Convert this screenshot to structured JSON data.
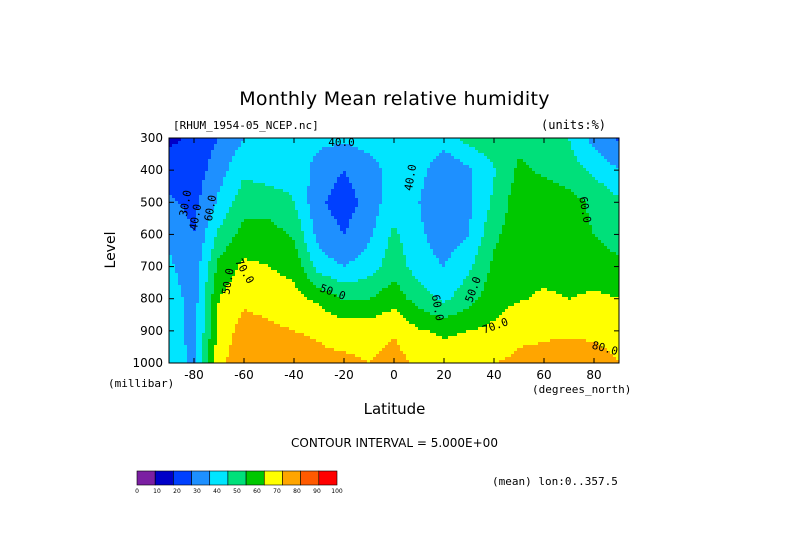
{
  "chart_data": {
    "type": "heatmap",
    "title": "Monthly Mean relative humidity",
    "dataset_label": "[RHUM_1954-05_NCEP.nc]",
    "units_label": "(units:%)",
    "xlabel": "Latitude",
    "x_units": "(degrees_north)",
    "ylabel": "Level",
    "y_units": "(millibar)",
    "x_ticks": [
      "-80",
      "-60",
      "-40",
      "-20",
      "0",
      "20",
      "40",
      "60",
      "80"
    ],
    "x_tick_values": [
      -80,
      -60,
      -40,
      -20,
      0,
      20,
      40,
      60,
      80
    ],
    "y_ticks": [
      "300",
      "400",
      "500",
      "600",
      "700",
      "800",
      "900",
      "1000"
    ],
    "y_tick_values": [
      300,
      400,
      500,
      600,
      700,
      800,
      900,
      1000
    ],
    "xlim": [
      -90,
      90
    ],
    "ylim": [
      1000,
      300
    ],
    "contour_interval_text": "CONTOUR INTERVAL = 5.000E+00",
    "footer_note": "(mean) lon:0..357.5",
    "contour_labels": [
      "40.0",
      "40.0",
      "30.0",
      "40.0",
      "50.0",
      "60.0",
      "70.0",
      "50.0",
      "60.0",
      "50.0",
      "70.0",
      "60.0",
      "80.0"
    ],
    "colorbar": {
      "ticks": [
        "0",
        "10",
        "20",
        "30",
        "40",
        "50",
        "60",
        "70",
        "80",
        "90",
        "100"
      ],
      "colors": [
        "#7b1fa2",
        "#0000c8",
        "#0040ff",
        "#1e90ff",
        "#00e5ff",
        "#00e07a",
        "#00c800",
        "#ffff00",
        "#ffa500",
        "#ff5a00",
        "#ff0000"
      ]
    },
    "humidity_by_level": {
      "latitudes": [
        -90,
        -80,
        -70,
        -60,
        -50,
        -40,
        -30,
        -20,
        -10,
        0,
        10,
        20,
        30,
        40,
        50,
        60,
        70,
        80,
        90
      ],
      "levels": [
        {
          "p": 300,
          "rh": [
            18,
            22,
            30,
            40,
            42,
            45,
            43,
            42,
            44,
            45,
            47,
            45,
            54,
            58,
            57,
            56,
            50,
            36,
            28
          ]
        },
        {
          "p": 400,
          "rh": [
            25,
            24,
            36,
            48,
            46,
            48,
            35,
            30,
            36,
            44,
            44,
            32,
            38,
            49,
            62,
            58,
            54,
            48,
            40
          ]
        },
        {
          "p": 500,
          "rh": [
            32,
            27,
            42,
            56,
            54,
            50,
            32,
            25,
            34,
            46,
            40,
            30,
            38,
            52,
            66,
            68,
            64,
            58,
            52
          ]
        },
        {
          "p": 600,
          "rh": [
            38,
            30,
            52,
            64,
            65,
            58,
            36,
            30,
            38,
            52,
            42,
            34,
            40,
            58,
            66,
            68,
            64,
            60,
            56
          ]
        },
        {
          "p": 700,
          "rh": [
            42,
            33,
            63,
            72,
            70,
            67,
            45,
            40,
            45,
            56,
            45,
            40,
            48,
            62,
            66,
            66,
            64,
            64,
            62
          ]
        },
        {
          "p": 800,
          "rh": [
            46,
            35,
            70,
            78,
            76,
            73,
            68,
            59,
            60,
            66,
            55,
            48,
            56,
            66,
            69,
            72,
            70,
            72,
            70
          ]
        },
        {
          "p": 900,
          "rh": [
            48,
            35,
            74,
            84,
            82,
            80,
            79,
            76,
            76,
            79,
            71,
            68,
            70,
            72,
            78,
            79,
            78,
            78,
            76
          ]
        },
        {
          "p": 1000,
          "rh": [
            50,
            36,
            78,
            86,
            84,
            84,
            82,
            82,
            80,
            84,
            78,
            76,
            77,
            80,
            82,
            82,
            86,
            84,
            80
          ]
        }
      ]
    }
  }
}
